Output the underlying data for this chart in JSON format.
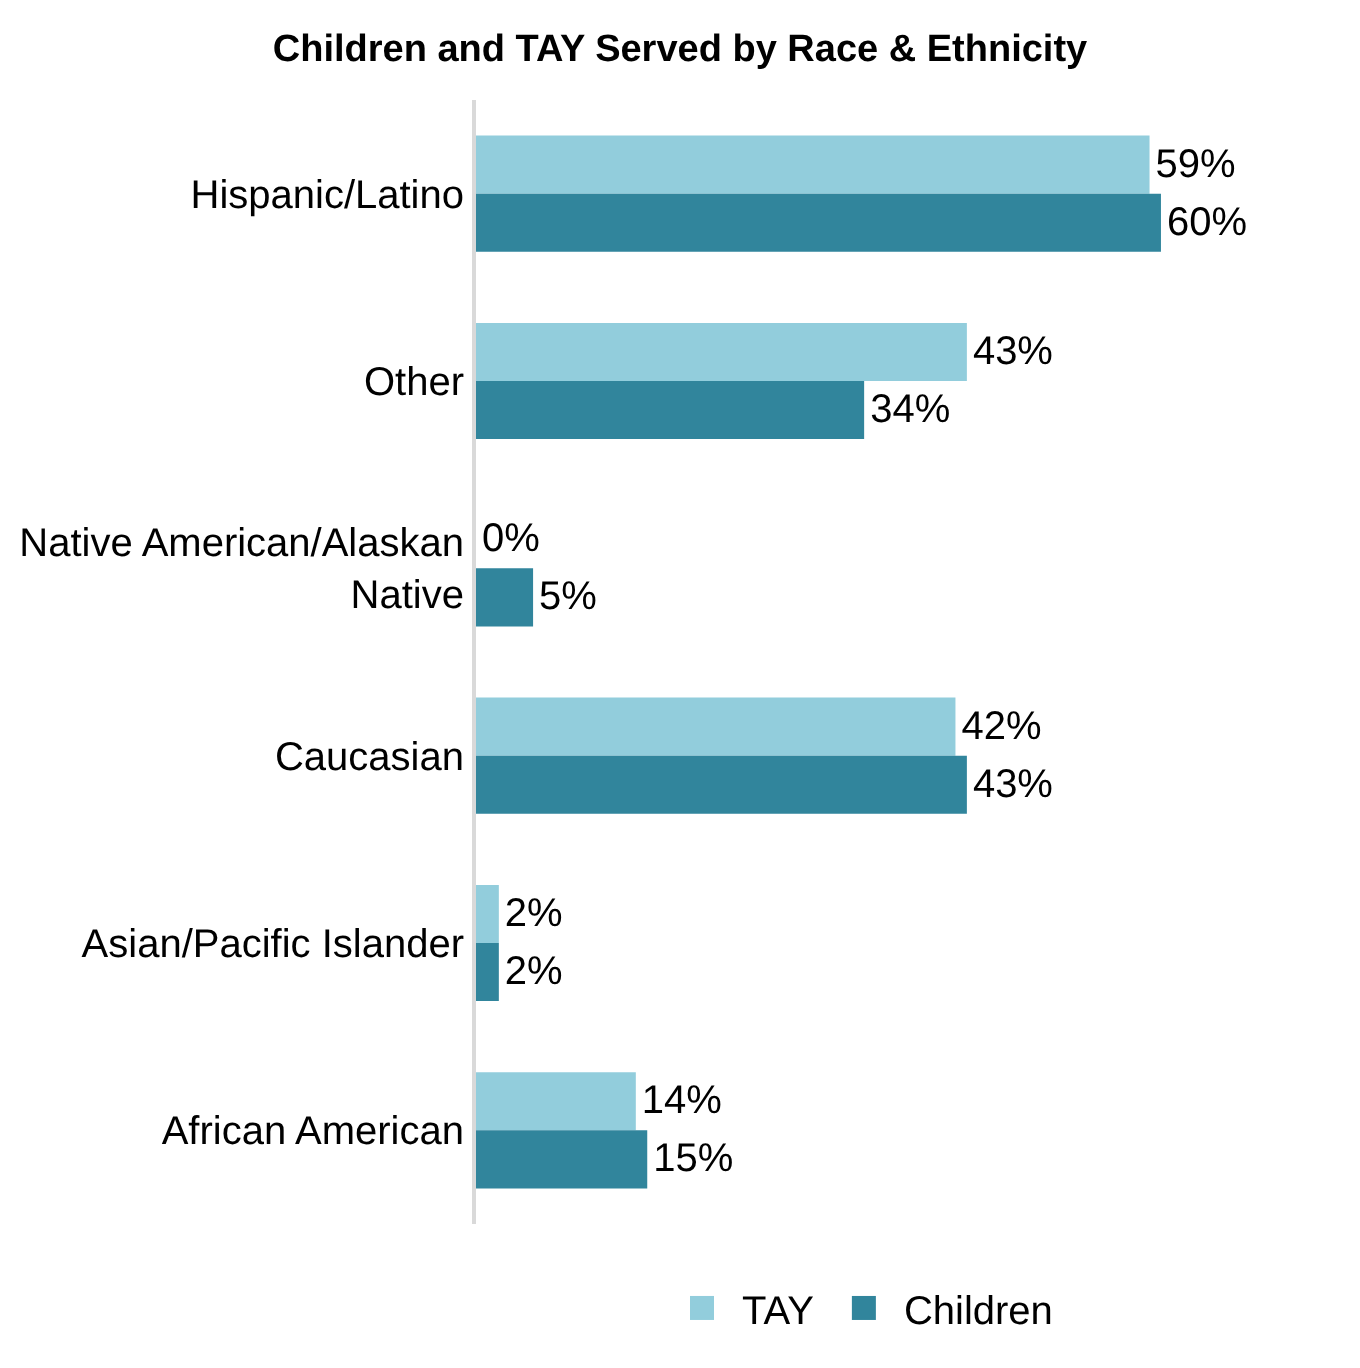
{
  "chart_data": {
    "type": "bar",
    "orientation": "horizontal",
    "title": "Children and TAY Served by Race & Ethnicity",
    "categories": [
      "Hispanic/Latino",
      "Other",
      "Native American/Alaskan Native",
      "Caucasian",
      "Asian/Pacific Islander",
      "African American"
    ],
    "series": [
      {
        "name": "TAY",
        "color": "#92cddc",
        "values": [
          59,
          43,
          0,
          42,
          2,
          14
        ],
        "value_labels": [
          "59%",
          "43%",
          "0%",
          "42%",
          "2%",
          "14%"
        ]
      },
      {
        "name": "Children",
        "color": "#31859c",
        "values": [
          60,
          34,
          5,
          43,
          2,
          15
        ],
        "value_labels": [
          "60%",
          "34%",
          "5%",
          "43%",
          "2%",
          "15%"
        ]
      }
    ],
    "legend": "bottom"
  }
}
